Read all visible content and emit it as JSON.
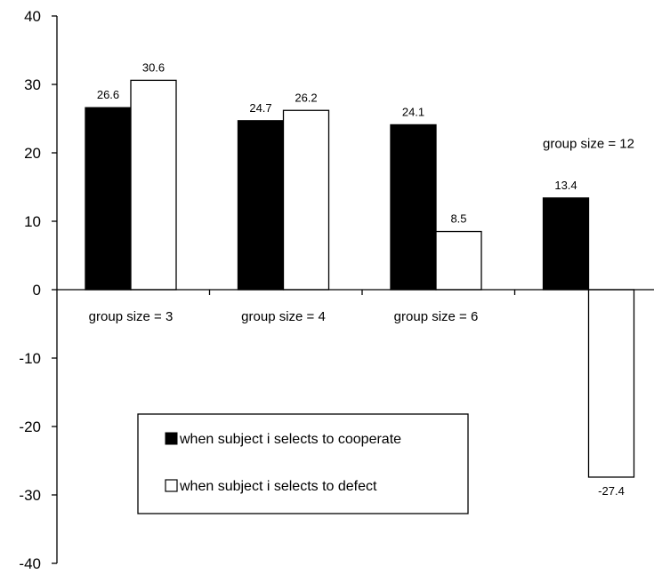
{
  "chart_data": {
    "type": "bar",
    "categories": [
      "group size = 3",
      "group size = 4",
      "group size = 6",
      "group size = 12"
    ],
    "series": [
      {
        "name": "when subject i selects to cooperate",
        "values": [
          26.6,
          24.7,
          24.1,
          13.4
        ],
        "color": "#000000"
      },
      {
        "name": "when subject i selects to defect",
        "values": [
          30.6,
          26.2,
          8.5,
          -27.4
        ],
        "color": "#ffffff"
      }
    ],
    "data_labels": [
      [
        "26.6",
        "24.7",
        "24.1",
        "13.4"
      ],
      [
        "30.6",
        "26.2",
        "8.5",
        "-27.4"
      ]
    ],
    "yticks": [
      "40",
      "30",
      "20",
      "10",
      "0",
      "-10",
      "-20",
      "-30",
      "-40"
    ],
    "ylim": [
      -40,
      40
    ],
    "title": "",
    "xlabel": "",
    "ylabel": "",
    "grid": false,
    "legend_position": "bottom-center inside plot",
    "category_label_position": "below zero line; last category label above its bars"
  }
}
